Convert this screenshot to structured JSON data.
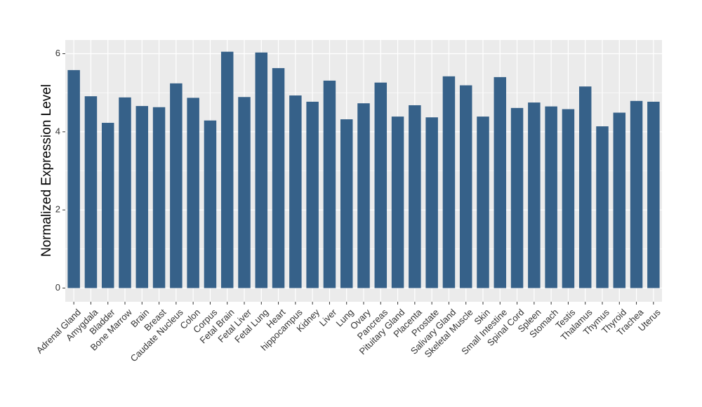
{
  "chart_data": {
    "type": "bar",
    "title": "",
    "xlabel": "",
    "ylabel": "Normalized Expression Level",
    "ylim": [
      -0.35,
      6.35
    ],
    "yticks": [
      0,
      2,
      4,
      6
    ],
    "grid": true,
    "bar_color": "#366189",
    "panel_color": "#EBEBEB",
    "grid_color": "#FFFFFF",
    "categories": [
      "Adrenal Gland",
      "Amygdala",
      "Bladder",
      "Bone Marrow",
      "Brain",
      "Breast",
      "Caudate Nucleus",
      "Colon",
      "Corpus",
      "Fetal Brain",
      "Fetal Liver",
      "Fetal Lung",
      "Heart",
      "hippocampus",
      "Kidney",
      "Liver",
      "Lung",
      "Ovary",
      "Pancreas",
      "Pituitary Gland",
      "Placenta",
      "Prostate",
      "Salivary Gland",
      "Skeletal Muscle",
      "Skin",
      "Small Intestine",
      "Spinal Cord",
      "Spleen",
      "Stomach",
      "Testis",
      "Thalamus",
      "Thymus",
      "Thyroid",
      "Trachea",
      "Uterus"
    ],
    "values": [
      5.58,
      4.91,
      4.23,
      4.88,
      4.66,
      4.63,
      5.24,
      4.87,
      4.29,
      6.05,
      4.89,
      6.03,
      5.63,
      4.93,
      4.77,
      5.31,
      4.32,
      4.73,
      5.26,
      4.39,
      4.68,
      4.37,
      5.42,
      5.19,
      4.39,
      5.4,
      4.61,
      4.75,
      4.65,
      4.58,
      5.16,
      4.14,
      4.49,
      4.79,
      4.77
    ]
  }
}
